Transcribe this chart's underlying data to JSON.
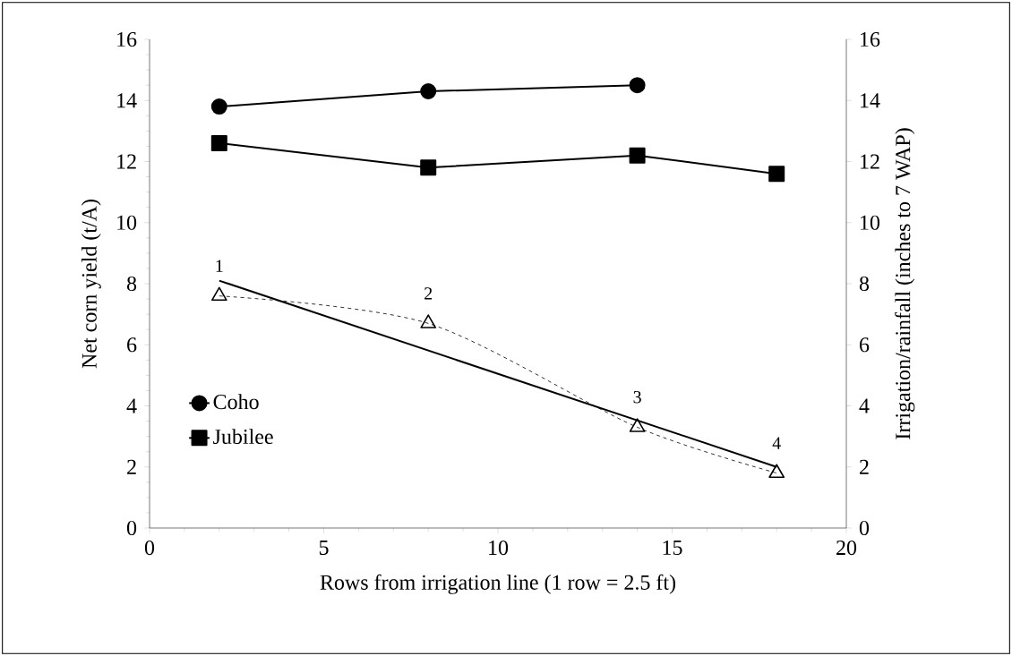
{
  "chart_data": {
    "type": "line",
    "xlabel": "Rows from irrigation line (1 row = 2.5 ft)",
    "ylabel": "Net corn yield (t/A)",
    "y2label": "Irrigation/rainfall (inches to 7 WAP)",
    "xlim": [
      0,
      20
    ],
    "xticks": [
      0,
      5,
      10,
      15,
      20
    ],
    "ylim": [
      0,
      16
    ],
    "yticks": [
      0,
      2,
      4,
      6,
      8,
      10,
      12,
      14,
      16
    ],
    "y2lim": [
      0,
      16
    ],
    "y2ticks": [
      0,
      2,
      4,
      6,
      8,
      10,
      12,
      14,
      16
    ],
    "legend": "left",
    "series": [
      {
        "name": "Coho",
        "color": "#000000",
        "x": [
          2,
          8,
          14
        ],
        "values": [
          13.8,
          14.3,
          14.5
        ],
        "marker": "circle",
        "line_style": "solid"
      },
      {
        "name": "Jubilee",
        "color": "#000000",
        "x": [
          2,
          8,
          14,
          18
        ],
        "values": [
          12.6,
          11.8,
          12.2,
          11.6
        ],
        "marker": "square",
        "line_style": "solid"
      },
      {
        "color": "#000000",
        "axis": "y2",
        "x": [
          2,
          8,
          14,
          18
        ],
        "values": [
          7.6,
          6.7,
          3.3,
          1.8
        ],
        "marker": "triangle",
        "line_style": "dashed"
      },
      {
        "color": "#000000",
        "axis": "y2",
        "x": [
          2,
          18
        ],
        "values": [
          8.1,
          2.0
        ],
        "marker": "none",
        "line_style": "solid"
      }
    ],
    "annotations": [
      {
        "text": "1",
        "x": 2,
        "y": 7.6
      },
      {
        "text": "2",
        "x": 8,
        "y": 6.7
      },
      {
        "text": "3",
        "x": 14,
        "y": 3.3
      },
      {
        "text": "4",
        "x": 18,
        "y": 1.8
      }
    ]
  }
}
